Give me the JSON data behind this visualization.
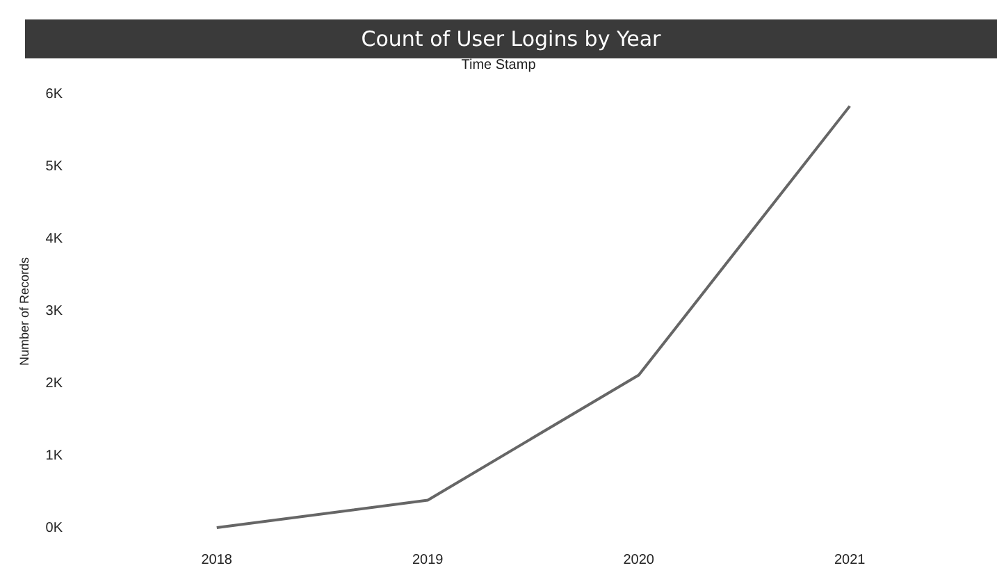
{
  "chart_data": {
    "type": "line",
    "title": "Count of User Logins by Year",
    "xlabel": "Time Stamp",
    "ylabel": "Number of Records",
    "categories": [
      "2018",
      "2019",
      "2020",
      "2021"
    ],
    "series": [
      {
        "color": "#666666",
        "values": [
          10,
          390,
          2120,
          5840
        ]
      }
    ],
    "ylim": [
      0,
      6000
    ],
    "yticks": [
      {
        "value": 0,
        "label": "0K"
      },
      {
        "value": 1000,
        "label": "1K"
      },
      {
        "value": 2000,
        "label": "2K"
      },
      {
        "value": 3000,
        "label": "3K"
      },
      {
        "value": 4000,
        "label": "4K"
      },
      {
        "value": 5000,
        "label": "5K"
      },
      {
        "value": 6000,
        "label": "6K"
      }
    ],
    "grid": false,
    "marker": "none",
    "line_style": "solid"
  }
}
